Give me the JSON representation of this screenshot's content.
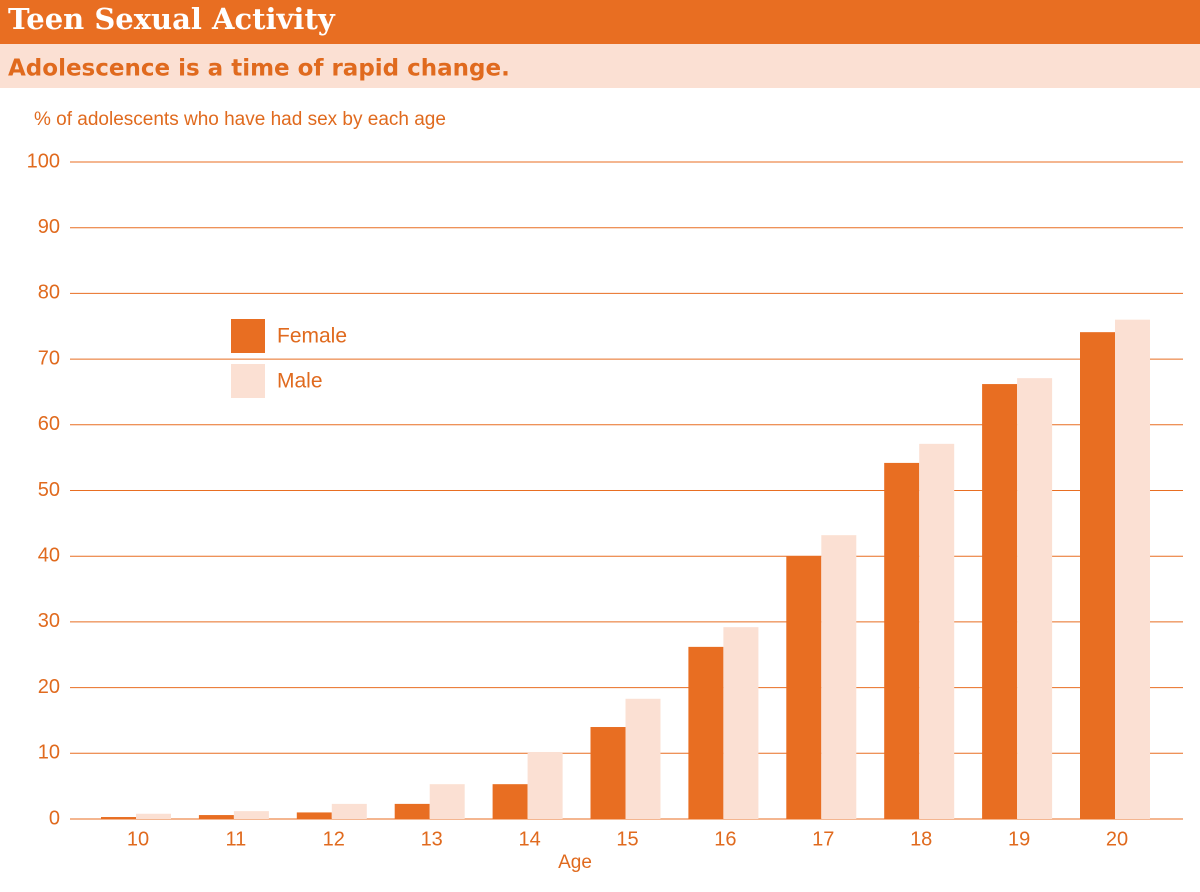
{
  "chart_data": {
    "type": "bar",
    "title": "Teen Sexual Activity",
    "subtitle": "Adolescence is a time of rapid change.",
    "y_label": "% of adolescents who have had sex by each age",
    "x_label": "Age",
    "categories": [
      "10",
      "11",
      "12",
      "13",
      "14",
      "15",
      "16",
      "17",
      "18",
      "19",
      "20"
    ],
    "series": [
      {
        "name": "Female",
        "color": "#e86e22",
        "values": [
          0.3,
          0.6,
          1,
          2.3,
          5.3,
          14,
          26.2,
          40,
          54.2,
          66.2,
          74.1
        ]
      },
      {
        "name": "Male",
        "color": "#fbe0d3",
        "values": [
          0.8,
          1.2,
          2.3,
          5.3,
          10.2,
          18.3,
          29.2,
          43.2,
          57.1,
          67.1,
          76
        ]
      }
    ],
    "ylim": [
      0,
      100
    ],
    "yticks": [
      0,
      10,
      20,
      30,
      40,
      50,
      60,
      70,
      80,
      90,
      100
    ],
    "grid": true,
    "legend": "upper left"
  }
}
